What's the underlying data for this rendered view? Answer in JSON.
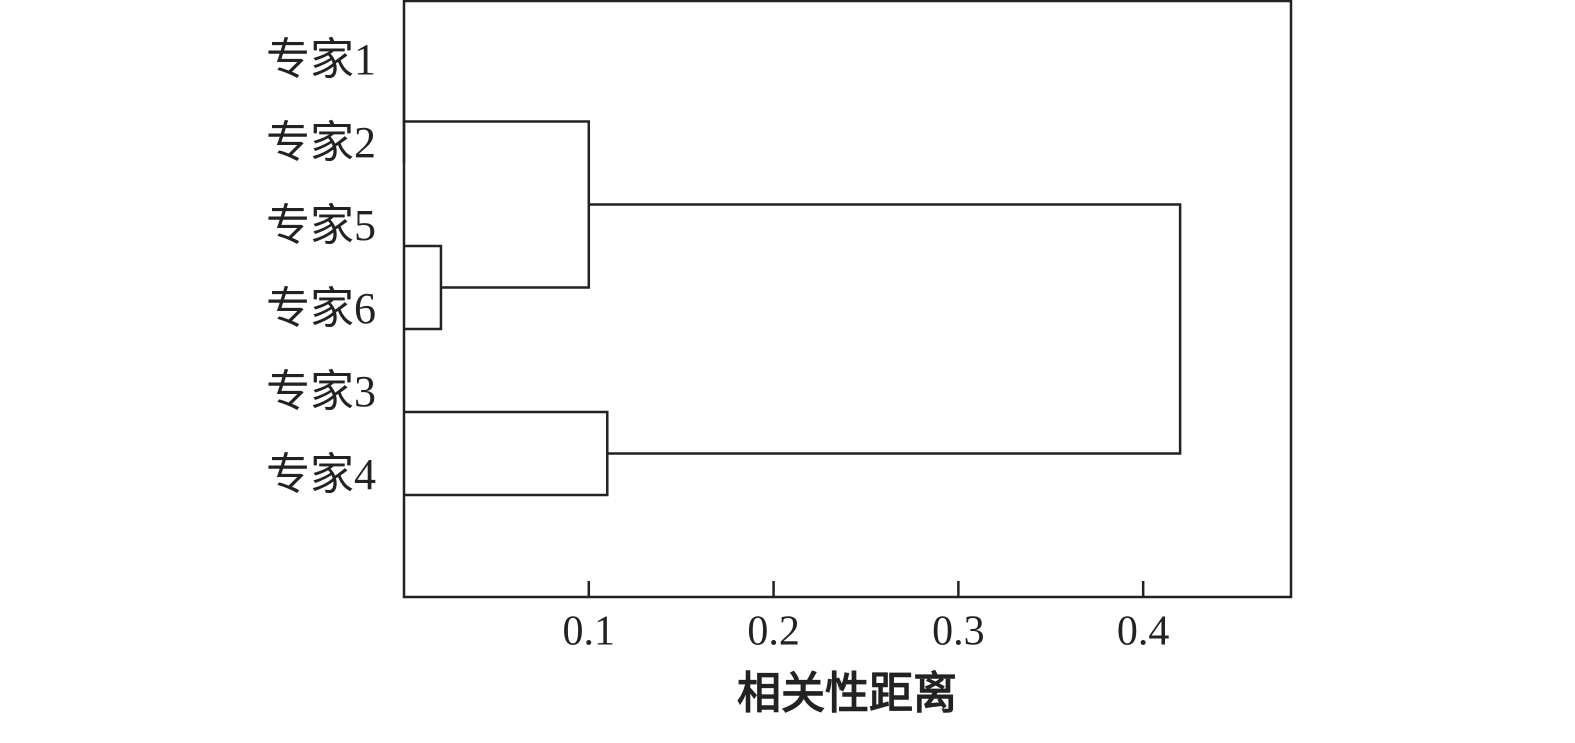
{
  "chart_data": {
    "type": "dendrogram",
    "categories": [
      "专家1",
      "专家2",
      "专家5",
      "专家6",
      "专家3",
      "专家4"
    ],
    "merges": [
      {
        "children": [
          0,
          1
        ],
        "height": 0
      },
      {
        "children": [
          2,
          3
        ],
        "height": 0.02
      },
      {
        "children": [
          6,
          7
        ],
        "height": 0.1
      },
      {
        "children": [
          4,
          5
        ],
        "height": 0.11
      },
      {
        "children": [
          8,
          9
        ],
        "height": 0.42
      }
    ],
    "xlim": [
      0,
      0.48
    ],
    "xticks": [
      0.1,
      0.2,
      0.3,
      0.4
    ],
    "x_label": "相关性距离",
    "color": "#222222"
  }
}
